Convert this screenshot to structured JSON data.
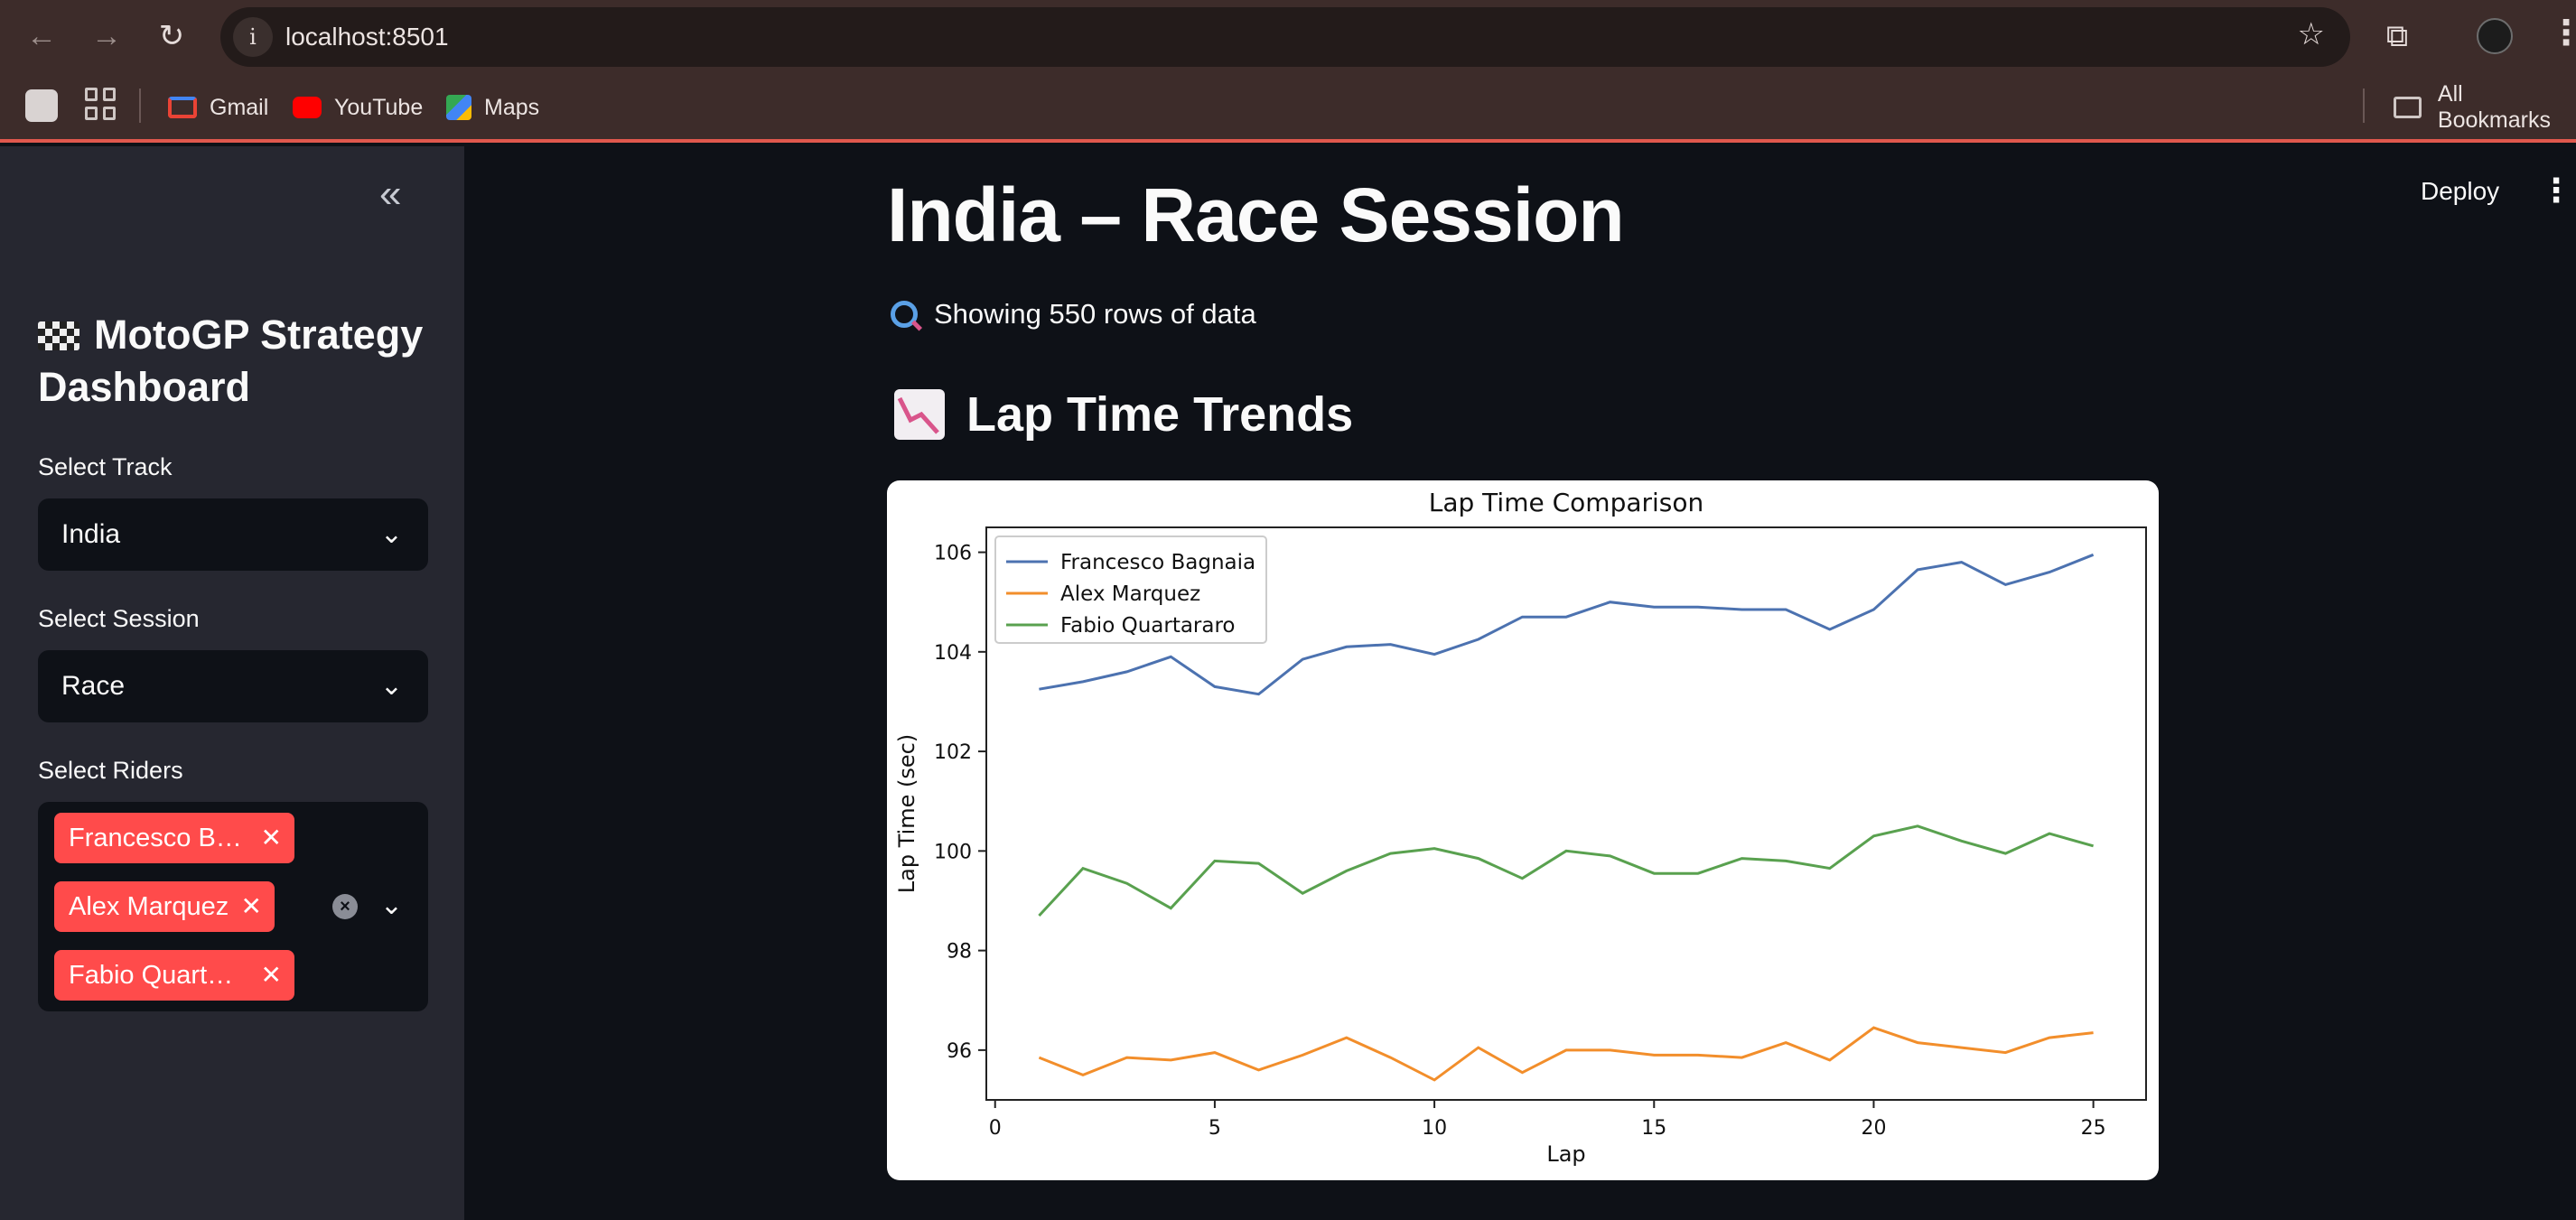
{
  "browser": {
    "url": "localhost:8501",
    "bookmarks": [
      {
        "label": "Gmail",
        "color": "#ea4335"
      },
      {
        "label": "YouTube",
        "color": "#ff0000"
      },
      {
        "label": "Maps",
        "color": "#34a853"
      }
    ],
    "all_bookmarks": "All Bookmarks"
  },
  "sidebar": {
    "title": "MotoGP Strategy Dashboard",
    "track_label": "Select Track",
    "track_value": "India",
    "session_label": "Select Session",
    "session_value": "Race",
    "riders_label": "Select Riders",
    "riders": [
      "Francesco B…",
      "Alex Marquez",
      "Fabio Quart…"
    ]
  },
  "header": {
    "deploy_label": "Deploy"
  },
  "main": {
    "title": "India – Race Session",
    "rows_info": "Showing 550 rows of data",
    "section_title": "Lap Time Trends"
  },
  "chart_data": {
    "type": "line",
    "title": "Lap Time Comparison",
    "xlabel": "Lap",
    "ylabel": "Lap Time (sec)",
    "xlim": [
      -0.2,
      26.2
    ],
    "ylim": [
      95.0,
      106.5
    ],
    "xticks": [
      0,
      5,
      10,
      15,
      20,
      25
    ],
    "yticks": [
      96,
      98,
      100,
      102,
      104,
      106
    ],
    "legend_position": "top-left",
    "grid": false,
    "x": [
      1,
      2,
      3,
      4,
      5,
      6,
      7,
      8,
      9,
      10,
      11,
      12,
      13,
      14,
      15,
      16,
      17,
      18,
      19,
      20,
      21,
      22,
      23,
      24,
      25
    ],
    "series": [
      {
        "name": "Francesco Bagnaia",
        "color": "#4c72b0",
        "values": [
          103.25,
          103.4,
          103.6,
          103.9,
          103.3,
          103.15,
          103.85,
          104.1,
          104.15,
          103.95,
          104.25,
          104.7,
          104.7,
          105.0,
          104.9,
          104.9,
          104.85,
          104.85,
          104.45,
          104.85,
          105.65,
          105.8,
          105.35,
          105.6,
          105.95
        ]
      },
      {
        "name": "Alex Marquez",
        "color": "#f28e2b",
        "values": [
          95.85,
          95.5,
          95.85,
          95.8,
          95.95,
          95.6,
          95.9,
          96.25,
          95.85,
          95.4,
          96.05,
          95.55,
          96.0,
          96.0,
          95.9,
          95.9,
          95.85,
          96.15,
          95.8,
          96.45,
          96.15,
          96.05,
          95.95,
          96.25,
          96.35
        ]
      },
      {
        "name": "Fabio Quartararo",
        "color": "#59a14f",
        "values": [
          98.7,
          99.65,
          99.35,
          98.85,
          99.8,
          99.75,
          99.15,
          99.6,
          99.95,
          100.05,
          99.85,
          99.45,
          100.0,
          99.9,
          99.55,
          99.55,
          99.85,
          99.8,
          99.65,
          100.3,
          100.5,
          100.2,
          99.95,
          100.35,
          100.1
        ]
      }
    ]
  }
}
